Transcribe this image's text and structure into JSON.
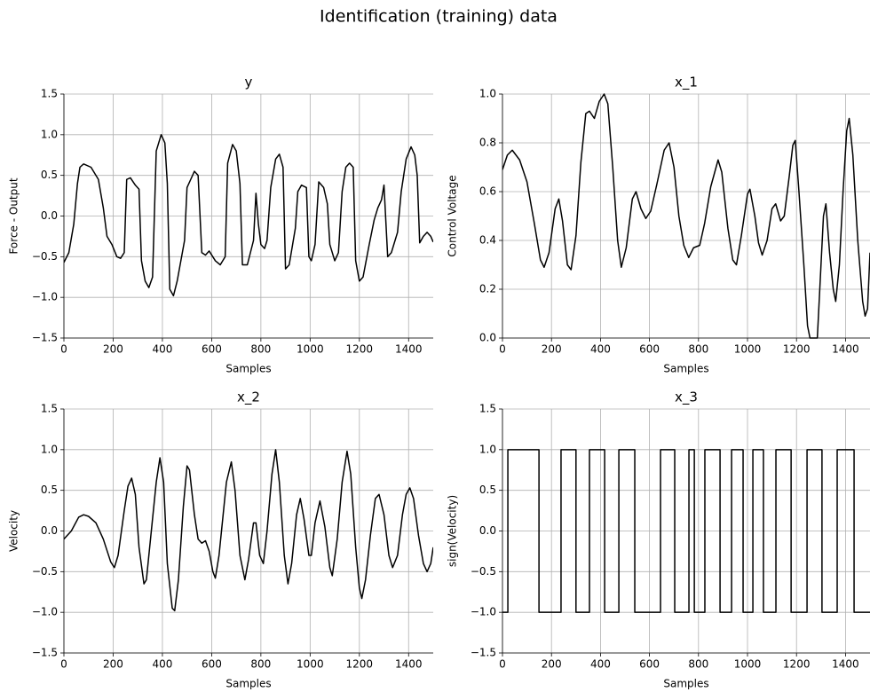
{
  "title": "Identification (training) data",
  "chart_data": [
    {
      "type": "line",
      "title": "y",
      "xlabel": "Samples",
      "ylabel": "Force - Output",
      "color": "#000000",
      "grid": true,
      "xlim": [
        0,
        1500
      ],
      "xticks": [
        0,
        200,
        400,
        600,
        800,
        1000,
        1200,
        1400
      ],
      "ylim": [
        -1.5,
        1.5
      ],
      "yticks": [
        {
          "value": -1.5,
          "label": "−1.5"
        },
        {
          "value": -1,
          "label": "−1.0"
        },
        {
          "value": -0.5,
          "label": "−0.5"
        },
        {
          "value": 0,
          "label": "0.0"
        },
        0.5,
        {
          "value": 1,
          "label": "1.0"
        },
        1.5
      ],
      "x": [
        0,
        20,
        40,
        55,
        65,
        80,
        110,
        140,
        160,
        175,
        195,
        215,
        230,
        245,
        255,
        270,
        290,
        305,
        315,
        330,
        345,
        360,
        375,
        395,
        410,
        420,
        430,
        445,
        460,
        490,
        500,
        515,
        530,
        545,
        560,
        575,
        590,
        615,
        635,
        655,
        665,
        685,
        700,
        715,
        725,
        745,
        770,
        780,
        790,
        800,
        815,
        825,
        840,
        860,
        875,
        890,
        900,
        915,
        940,
        950,
        965,
        985,
        995,
        1005,
        1020,
        1035,
        1055,
        1070,
        1080,
        1100,
        1115,
        1130,
        1145,
        1160,
        1175,
        1185,
        1200,
        1215,
        1240,
        1260,
        1275,
        1290,
        1300,
        1315,
        1330,
        1355,
        1370,
        1390,
        1410,
        1425,
        1435,
        1445,
        1460,
        1475,
        1490,
        1500
      ],
      "values": [
        -0.57,
        -0.45,
        -0.1,
        0.4,
        0.6,
        0.64,
        0.6,
        0.45,
        0.1,
        -0.25,
        -0.35,
        -0.5,
        -0.52,
        -0.45,
        0.45,
        0.47,
        0.38,
        0.33,
        -0.55,
        -0.8,
        -0.88,
        -0.75,
        0.8,
        1.0,
        0.9,
        0.4,
        -0.9,
        -0.98,
        -0.8,
        -0.3,
        0.35,
        0.45,
        0.55,
        0.5,
        -0.45,
        -0.48,
        -0.43,
        -0.55,
        -0.6,
        -0.5,
        0.65,
        0.88,
        0.8,
        0.4,
        -0.6,
        -0.6,
        -0.3,
        0.28,
        -0.1,
        -0.35,
        -0.4,
        -0.3,
        0.35,
        0.7,
        0.76,
        0.6,
        -0.65,
        -0.6,
        -0.15,
        0.3,
        0.38,
        0.35,
        -0.5,
        -0.55,
        -0.35,
        0.42,
        0.35,
        0.15,
        -0.35,
        -0.55,
        -0.45,
        0.3,
        0.6,
        0.65,
        0.6,
        -0.55,
        -0.8,
        -0.75,
        -0.35,
        -0.05,
        0.1,
        0.2,
        0.38,
        -0.5,
        -0.45,
        -0.2,
        0.3,
        0.7,
        0.85,
        0.75,
        0.5,
        -0.33,
        -0.25,
        -0.2,
        -0.25,
        -0.32
      ]
    },
    {
      "type": "line",
      "title": "x_1",
      "xlabel": "Samples",
      "ylabel": "Control Voltage",
      "color": "#000000",
      "grid": true,
      "xlim": [
        0,
        1500
      ],
      "xticks": [
        0,
        200,
        400,
        600,
        800,
        1000,
        1200,
        1400
      ],
      "ylim": [
        0,
        1
      ],
      "yticks": [
        {
          "value": 0,
          "label": "0.0"
        },
        0.2,
        0.4,
        0.6,
        0.8,
        {
          "value": 1,
          "label": "1.0"
        }
      ],
      "x": [
        0,
        20,
        40,
        70,
        100,
        130,
        155,
        170,
        190,
        215,
        230,
        245,
        265,
        280,
        300,
        320,
        340,
        355,
        375,
        395,
        415,
        430,
        450,
        470,
        485,
        505,
        530,
        545,
        565,
        585,
        605,
        630,
        660,
        680,
        700,
        720,
        740,
        760,
        780,
        805,
        825,
        850,
        880,
        895,
        920,
        940,
        955,
        975,
        1000,
        1010,
        1030,
        1045,
        1060,
        1080,
        1100,
        1115,
        1135,
        1150,
        1170,
        1185,
        1195,
        1210,
        1230,
        1245,
        1255,
        1285,
        1295,
        1310,
        1320,
        1335,
        1350,
        1360,
        1375,
        1390,
        1405,
        1415,
        1430,
        1450,
        1470,
        1480,
        1490,
        1500
      ],
      "values": [
        0.69,
        0.75,
        0.77,
        0.73,
        0.64,
        0.47,
        0.32,
        0.29,
        0.35,
        0.53,
        0.57,
        0.48,
        0.3,
        0.28,
        0.42,
        0.72,
        0.92,
        0.93,
        0.9,
        0.97,
        1.0,
        0.96,
        0.7,
        0.4,
        0.29,
        0.37,
        0.57,
        0.6,
        0.53,
        0.49,
        0.52,
        0.63,
        0.77,
        0.8,
        0.7,
        0.5,
        0.38,
        0.33,
        0.37,
        0.38,
        0.47,
        0.62,
        0.73,
        0.68,
        0.45,
        0.32,
        0.3,
        0.42,
        0.59,
        0.61,
        0.5,
        0.39,
        0.34,
        0.4,
        0.53,
        0.55,
        0.48,
        0.5,
        0.66,
        0.79,
        0.81,
        0.6,
        0.3,
        0.05,
        0.0,
        0.0,
        0.2,
        0.5,
        0.55,
        0.35,
        0.2,
        0.15,
        0.3,
        0.6,
        0.85,
        0.9,
        0.75,
        0.4,
        0.15,
        0.09,
        0.12,
        0.35
      ]
    },
    {
      "type": "line",
      "title": "x_2",
      "xlabel": "Samples",
      "ylabel": "Velocity",
      "color": "#000000",
      "grid": true,
      "xlim": [
        0,
        1500
      ],
      "xticks": [
        0,
        200,
        400,
        600,
        800,
        1000,
        1200,
        1400
      ],
      "ylim": [
        -1.5,
        1.5
      ],
      "yticks": [
        {
          "value": -1.5,
          "label": "−1.5"
        },
        {
          "value": -1,
          "label": "−1.0"
        },
        {
          "value": -0.5,
          "label": "−0.5"
        },
        {
          "value": 0,
          "label": "0.0"
        },
        0.5,
        {
          "value": 1,
          "label": "1.0"
        },
        1.5
      ],
      "x": [
        0,
        30,
        60,
        80,
        100,
        130,
        160,
        190,
        205,
        220,
        245,
        260,
        275,
        290,
        305,
        325,
        335,
        355,
        375,
        390,
        405,
        420,
        440,
        450,
        465,
        485,
        500,
        510,
        530,
        545,
        560,
        575,
        590,
        605,
        615,
        630,
        660,
        680,
        695,
        715,
        735,
        750,
        770,
        780,
        795,
        810,
        825,
        845,
        860,
        875,
        895,
        910,
        925,
        945,
        960,
        975,
        995,
        1005,
        1020,
        1040,
        1060,
        1080,
        1090,
        1110,
        1130,
        1150,
        1165,
        1185,
        1200,
        1210,
        1225,
        1245,
        1265,
        1280,
        1300,
        1320,
        1335,
        1355,
        1375,
        1390,
        1405,
        1420,
        1440,
        1460,
        1475,
        1490,
        1500
      ],
      "values": [
        -0.1,
        0.0,
        0.17,
        0.2,
        0.18,
        0.1,
        -0.1,
        -0.38,
        -0.45,
        -0.3,
        0.25,
        0.55,
        0.65,
        0.45,
        -0.2,
        -0.65,
        -0.6,
        0.0,
        0.6,
        0.9,
        0.6,
        -0.4,
        -0.95,
        -0.98,
        -0.6,
        0.3,
        0.8,
        0.75,
        0.2,
        -0.1,
        -0.15,
        -0.12,
        -0.25,
        -0.5,
        -0.58,
        -0.3,
        0.6,
        0.85,
        0.5,
        -0.3,
        -0.6,
        -0.35,
        0.1,
        0.1,
        -0.3,
        -0.4,
        0.0,
        0.7,
        1.0,
        0.6,
        -0.3,
        -0.65,
        -0.4,
        0.2,
        0.4,
        0.15,
        -0.3,
        -0.3,
        0.1,
        0.37,
        0.05,
        -0.45,
        -0.55,
        -0.1,
        0.6,
        0.98,
        0.7,
        -0.2,
        -0.7,
        -0.83,
        -0.6,
        -0.05,
        0.4,
        0.45,
        0.2,
        -0.3,
        -0.45,
        -0.3,
        0.2,
        0.45,
        0.53,
        0.4,
        -0.05,
        -0.4,
        -0.5,
        -0.4,
        -0.2
      ]
    },
    {
      "type": "line",
      "title": "x_3",
      "xlabel": "Samples",
      "ylabel": "sign(Velocity)",
      "color": "#000000",
      "grid": true,
      "xlim": [
        0,
        1500
      ],
      "xticks": [
        0,
        200,
        400,
        600,
        800,
        1000,
        1200,
        1400
      ],
      "ylim": [
        -1.5,
        1.5
      ],
      "yticks": [
        {
          "value": -1.5,
          "label": "−1.5"
        },
        {
          "value": -1,
          "label": "−1.0"
        },
        {
          "value": -0.5,
          "label": "−0.5"
        },
        {
          "value": 0,
          "label": "0.0"
        },
        0.5,
        {
          "value": 1,
          "label": "1.0"
        },
        1.5
      ],
      "x": [
        0,
        22,
        22,
        149,
        149,
        239,
        239,
        300,
        300,
        355,
        355,
        417,
        417,
        475,
        475,
        540,
        540,
        645,
        645,
        703,
        703,
        761,
        761,
        783,
        783,
        826,
        826,
        888,
        888,
        935,
        935,
        982,
        982,
        1022,
        1022,
        1065,
        1065,
        1116,
        1116,
        1178,
        1178,
        1243,
        1243,
        1304,
        1304,
        1366,
        1366,
        1435,
        1435,
        1500
      ],
      "values": [
        -1,
        -1,
        1,
        1,
        -1,
        -1,
        1,
        1,
        -1,
        -1,
        1,
        1,
        -1,
        -1,
        1,
        1,
        -1,
        -1,
        1,
        1,
        -1,
        -1,
        1,
        1,
        -1,
        -1,
        1,
        1,
        -1,
        -1,
        1,
        1,
        -1,
        -1,
        1,
        1,
        -1,
        -1,
        1,
        1,
        -1,
        -1,
        1,
        1,
        -1,
        -1,
        1,
        1,
        -1,
        -1
      ]
    }
  ]
}
